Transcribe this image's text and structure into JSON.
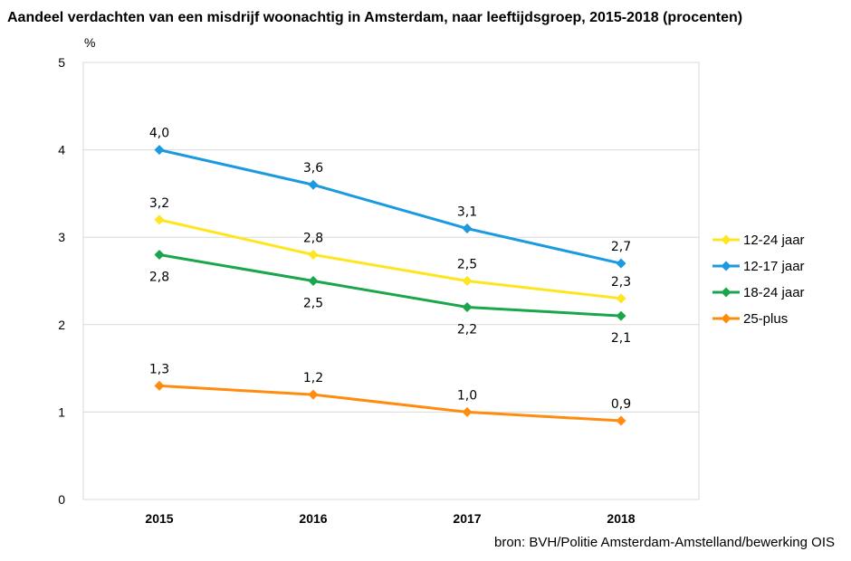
{
  "chart_data": {
    "type": "line",
    "title": "Aandeel verdachten van een misdrijf woonachtig in Amsterdam, naar leeftijdsgroep, 2015-2018 (procenten)",
    "ylabel": "%",
    "xlabel": "",
    "x": [
      "2015",
      "2016",
      "2017",
      "2018"
    ],
    "ylim": [
      0,
      5
    ],
    "yticks": [
      "0",
      "1",
      "2",
      "3",
      "4",
      "5"
    ],
    "grid": true,
    "legend_position": "right",
    "series": [
      {
        "name": "12-24 jaar",
        "color": "#FFE51F",
        "values": [
          3.2,
          2.8,
          2.5,
          2.3
        ],
        "labels": [
          "3,2",
          "2,8",
          "2,5",
          "2,3"
        ],
        "label_pos": "above"
      },
      {
        "name": "12-17 jaar",
        "color": "#1C9AE0",
        "values": [
          4.0,
          3.6,
          3.1,
          2.7
        ],
        "labels": [
          "4,0",
          "3,6",
          "3,1",
          "2,7"
        ],
        "label_pos": "above"
      },
      {
        "name": "18-24 jaar",
        "color": "#1AA64A",
        "values": [
          2.8,
          2.5,
          2.2,
          2.1
        ],
        "labels": [
          "2,8",
          "2,5",
          "2,2",
          "2,1"
        ],
        "label_pos": "below"
      },
      {
        "name": "25-plus",
        "color": "#FF8C0F",
        "values": [
          1.3,
          1.2,
          1.0,
          0.9
        ],
        "labels": [
          "1,3",
          "1,2",
          "1,0",
          "0,9"
        ],
        "label_pos": "above"
      }
    ],
    "source": "bron: BVH/Politie Amsterdam-Amstelland/bewerking OIS"
  }
}
